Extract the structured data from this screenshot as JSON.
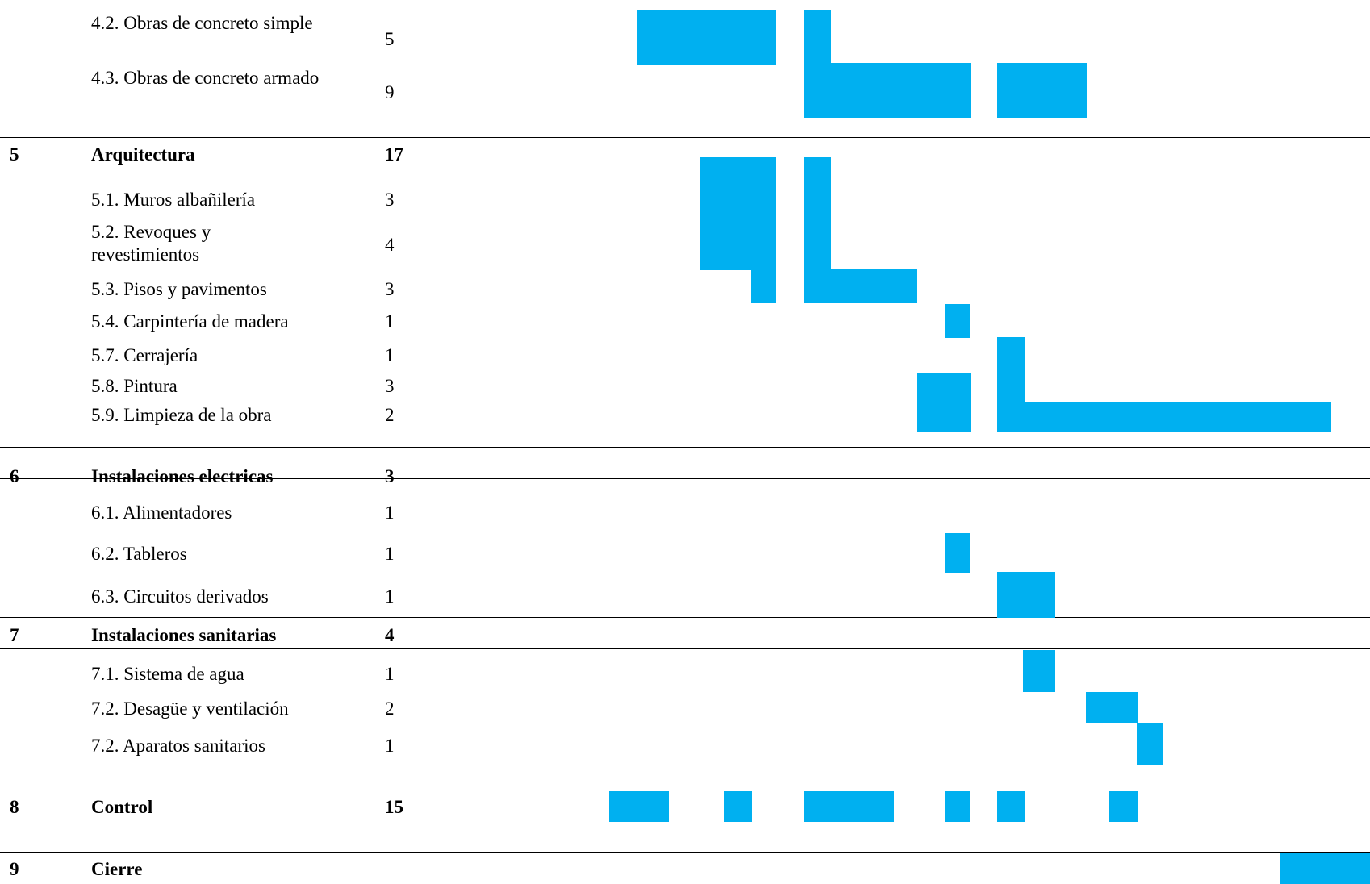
{
  "colors": {
    "bar": "#00b0f0",
    "rule": "#000000"
  },
  "gantt": {
    "rows": [
      {
        "id": "r42",
        "kind": "task",
        "num": "",
        "name": "4.2. Obras de concreto simple",
        "dur": "5"
      },
      {
        "id": "r43",
        "kind": "task",
        "num": "",
        "name": "4.3. Obras de concreto armado",
        "dur": "9"
      },
      {
        "id": "h5",
        "kind": "group",
        "num": "5",
        "name": "Arquitectura",
        "dur": "17"
      },
      {
        "id": "r51",
        "kind": "task",
        "num": "",
        "name": "5.1. Muros albañilería",
        "dur": "3"
      },
      {
        "id": "r52",
        "kind": "task",
        "num": "",
        "name": "5.2. Revoques y revestimientos",
        "dur": "4"
      },
      {
        "id": "r53",
        "kind": "task",
        "num": "",
        "name": "5.3. Pisos y pavimentos",
        "dur": "3"
      },
      {
        "id": "r54",
        "kind": "task",
        "num": "",
        "name": "5.4. Carpintería de madera",
        "dur": "1"
      },
      {
        "id": "r57",
        "kind": "task",
        "num": "",
        "name": "5.7. Cerrajería",
        "dur": "1"
      },
      {
        "id": "r58",
        "kind": "task",
        "num": "",
        "name": "5.8. Pintura",
        "dur": "3"
      },
      {
        "id": "r59",
        "kind": "task",
        "num": "",
        "name": "5.9. Limpieza de la obra",
        "dur": "2"
      },
      {
        "id": "h6",
        "kind": "group",
        "num": "6",
        "name": "Instalaciones electricas",
        "dur": "3"
      },
      {
        "id": "r61",
        "kind": "task",
        "num": "",
        "name": "6.1. Alimentadores",
        "dur": "1"
      },
      {
        "id": "r62",
        "kind": "task",
        "num": "",
        "name": "6.2. Tableros",
        "dur": "1"
      },
      {
        "id": "r63",
        "kind": "task",
        "num": "",
        "name": "6.3. Circuitos derivados",
        "dur": "1"
      },
      {
        "id": "h7",
        "kind": "group",
        "num": "7",
        "name": "Instalaciones sanitarias",
        "dur": "4"
      },
      {
        "id": "r71",
        "kind": "task",
        "num": "",
        "name": "7.1. Sistema de agua",
        "dur": "1"
      },
      {
        "id": "r72a",
        "kind": "task",
        "num": "",
        "name": "7.2. Desagüe y ventilación",
        "dur": "2"
      },
      {
        "id": "r72b",
        "kind": "task",
        "num": "",
        "name": "7.2. Aparatos sanitarios",
        "dur": "1"
      },
      {
        "id": "h8",
        "kind": "group",
        "num": "8",
        "name": "Control",
        "dur": "15"
      },
      {
        "id": "h9",
        "kind": "group",
        "num": "9",
        "name": "Cierre",
        "dur": ""
      }
    ]
  }
}
